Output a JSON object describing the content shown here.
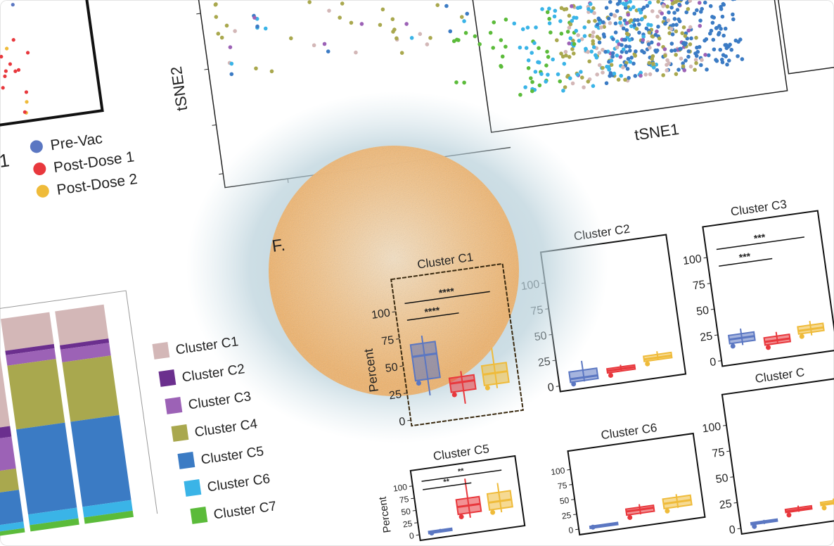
{
  "figure_label": "F.",
  "group_legend": [
    {
      "label": "Pre-Vac",
      "color": "#5b77c2"
    },
    {
      "label": "Post-Dose 1",
      "color": "#e8383d"
    },
    {
      "label": "Post-Dose 2",
      "color": "#efbb3a"
    }
  ],
  "cluster_legend": [
    {
      "label": "Cluster C1",
      "color": "#d3b7b7"
    },
    {
      "label": "Cluster C2",
      "color": "#6b2f8e"
    },
    {
      "label": "Cluster C3",
      "color": "#9c62b6"
    },
    {
      "label": "Cluster C4",
      "color": "#a9a84e"
    },
    {
      "label": "Cluster C5",
      "color": "#3b7bc4"
    },
    {
      "label": "Cluster C6",
      "color": "#3ab4e7"
    },
    {
      "label": "Cluster C7",
      "color": "#5bbb3a"
    }
  ],
  "tsne": {
    "xlabel": "tSNE1",
    "ylabel": "tSNE2",
    "partial_xlabel_fragment": "1"
  },
  "chart_data": [
    {
      "type": "scatter",
      "title": "",
      "xlabel": "tSNE1",
      "ylabel": "tSNE2",
      "colored_by": [
        "Pre-Vac",
        "Post-Dose 1",
        "Post-Dose 2",
        "Cluster C1",
        "Cluster C2",
        "Cluster C3",
        "Cluster C4",
        "Cluster C5",
        "Cluster C6",
        "Cluster C7"
      ]
    },
    {
      "type": "bar",
      "stacked": true,
      "ylabel": "",
      "series_order": [
        "Cluster C1",
        "Cluster C2",
        "Cluster C3",
        "Cluster C4",
        "Cluster C5",
        "Cluster C6",
        "Cluster C7"
      ],
      "bars": [
        [
          50,
          5,
          15,
          10,
          15,
          3,
          2
        ],
        [
          15,
          2,
          5,
          30,
          40,
          5,
          3
        ],
        [
          16,
          2,
          6,
          28,
          40,
          5,
          3
        ]
      ]
    },
    {
      "type": "box",
      "ylabel": "Percent",
      "ylim": [
        0,
        100
      ],
      "yticks": [
        "0",
        "25",
        "50",
        "75",
        "100"
      ],
      "groups": [
        "Pre-Vac",
        "Post-Dose 1",
        "Post-Dose 2"
      ],
      "panels": [
        {
          "title": "Cluster C1",
          "boxes": [
            [
              20,
              35,
              57,
              68,
              75
            ],
            [
              8,
              20,
              28,
              33,
              38
            ],
            [
              18,
              22,
              32,
              40,
              55
            ]
          ],
          "sig": [
            {
              "label": "****",
              "from": 0,
              "to": 2
            },
            {
              "label": "****",
              "from": 0,
              "to": 1
            }
          ]
        },
        {
          "title": "Cluster C2",
          "boxes": [
            [
              1,
              2,
              5,
              12,
              21
            ],
            [
              6,
              6,
              8,
              10,
              12
            ],
            [
              12,
              12,
              14,
              17,
              20
            ]
          ],
          "sig": []
        },
        {
          "title": "Cluster C3",
          "boxes": [
            [
              12,
              15,
              19,
              23,
              28
            ],
            [
              9,
              9,
              12,
              16,
              20
            ],
            [
              12,
              15,
              18,
              22,
              26
            ]
          ],
          "sig": [
            {
              "label": "***",
              "from": 0,
              "to": 2
            },
            {
              "label": "***",
              "from": 0,
              "to": 1
            }
          ]
        },
        {
          "title": "Cluster C5",
          "boxes": [
            [
              0,
              1,
              2,
              4,
              6
            ],
            [
              20,
              30,
              45,
              60,
              100
            ],
            [
              22,
              30,
              45,
              63,
              82
            ]
          ],
          "sig": [
            {
              "label": "**",
              "from": 0,
              "to": 2
            },
            {
              "label": "**",
              "from": 0,
              "to": 1
            }
          ]
        },
        {
          "title": "Cluster C6",
          "boxes": [
            [
              0,
              0,
              1,
              2,
              3
            ],
            [
              10,
              12,
              18,
              22,
              27
            ],
            [
              12,
              14,
              22,
              30,
              35
            ]
          ],
          "sig": []
        },
        {
          "title": "Cluster C",
          "boxes": [
            [
              1,
              2,
              3,
              4,
              5
            ],
            [
              8,
              9,
              10,
              12,
              14
            ],
            [
              10,
              11,
              12,
              14,
              16
            ]
          ],
          "sig": []
        }
      ]
    }
  ]
}
